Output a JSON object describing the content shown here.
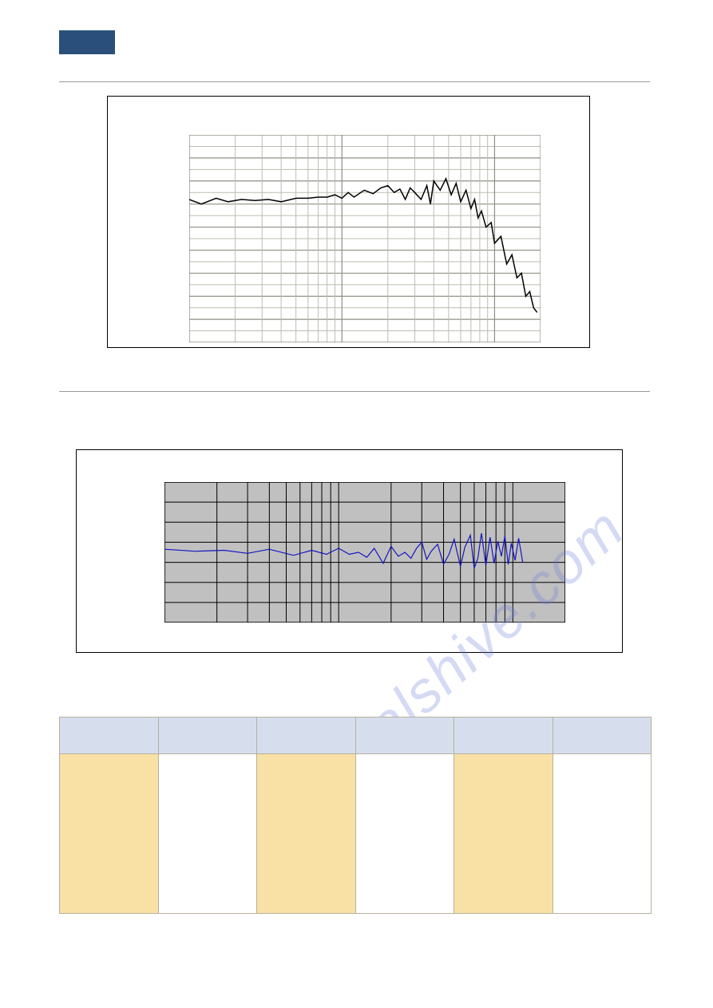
{
  "badge": {
    "bg": "#2a4f7a"
  },
  "watermark": {
    "text": "manualshive.com",
    "color": "#6b7cd8",
    "opacity": 0.28
  },
  "chart1": {
    "type": "line",
    "line_color": "#000000",
    "line_width": 1.5,
    "background_color": "#ffffff",
    "grid_color": "#bdbdb0",
    "grid_major_color": "#8f8f85",
    "x_scale": "log",
    "x_decades": [
      1,
      10,
      100,
      1000
    ],
    "ylim": [
      20,
      110
    ],
    "ytick_step": 10,
    "series": [
      {
        "f": 100,
        "db": 82
      },
      {
        "f": 120,
        "db": 80
      },
      {
        "f": 150,
        "db": 82.5
      },
      {
        "f": 180,
        "db": 81
      },
      {
        "f": 220,
        "db": 82
      },
      {
        "f": 270,
        "db": 81.5
      },
      {
        "f": 330,
        "db": 82
      },
      {
        "f": 400,
        "db": 81
      },
      {
        "f": 500,
        "db": 82.5
      },
      {
        "f": 600,
        "db": 82.5
      },
      {
        "f": 700,
        "db": 83
      },
      {
        "f": 800,
        "db": 83
      },
      {
        "f": 900,
        "db": 84
      },
      {
        "f": 1000,
        "db": 82.5
      },
      {
        "f": 1100,
        "db": 85
      },
      {
        "f": 1200,
        "db": 83
      },
      {
        "f": 1400,
        "db": 86
      },
      {
        "f": 1600,
        "db": 84.5
      },
      {
        "f": 1800,
        "db": 87
      },
      {
        "f": 2000,
        "db": 88
      },
      {
        "f": 2200,
        "db": 85
      },
      {
        "f": 2400,
        "db": 86.5
      },
      {
        "f": 2600,
        "db": 82
      },
      {
        "f": 2800,
        "db": 87
      },
      {
        "f": 3000,
        "db": 85
      },
      {
        "f": 3300,
        "db": 82
      },
      {
        "f": 3600,
        "db": 88
      },
      {
        "f": 3800,
        "db": 80
      },
      {
        "f": 4000,
        "db": 90
      },
      {
        "f": 4400,
        "db": 86
      },
      {
        "f": 4800,
        "db": 91
      },
      {
        "f": 5200,
        "db": 84
      },
      {
        "f": 5600,
        "db": 89
      },
      {
        "f": 6000,
        "db": 81
      },
      {
        "f": 6500,
        "db": 86
      },
      {
        "f": 7000,
        "db": 78
      },
      {
        "f": 7400,
        "db": 82
      },
      {
        "f": 7800,
        "db": 74
      },
      {
        "f": 8200,
        "db": 77
      },
      {
        "f": 8800,
        "db": 70
      },
      {
        "f": 9500,
        "db": 72
      },
      {
        "f": 10000,
        "db": 63
      },
      {
        "f": 11000,
        "db": 66
      },
      {
        "f": 12000,
        "db": 54
      },
      {
        "f": 13000,
        "db": 58
      },
      {
        "f": 14000,
        "db": 48
      },
      {
        "f": 15000,
        "db": 50
      },
      {
        "f": 16000,
        "db": 40
      },
      {
        "f": 17000,
        "db": 42
      },
      {
        "f": 18000,
        "db": 35
      },
      {
        "f": 19000,
        "db": 33
      }
    ]
  },
  "chart2": {
    "type": "line",
    "line_color": "#1515c0",
    "line_width": 1.2,
    "background_color": "#c0c0c0",
    "grid_color": "#000000",
    "x_scale": "log",
    "x_decades": [
      1,
      10,
      100,
      1000
    ],
    "ylim": [
      0,
      14
    ],
    "ymid": 7,
    "ytick_step": 2,
    "series": [
      {
        "f": 100,
        "y": 7.3
      },
      {
        "f": 150,
        "y": 7.1
      },
      {
        "f": 220,
        "y": 7.2
      },
      {
        "f": 300,
        "y": 6.9
      },
      {
        "f": 400,
        "y": 7.3
      },
      {
        "f": 550,
        "y": 6.7
      },
      {
        "f": 700,
        "y": 7.2
      },
      {
        "f": 850,
        "y": 6.8
      },
      {
        "f": 1000,
        "y": 7.4
      },
      {
        "f": 1150,
        "y": 6.8
      },
      {
        "f": 1300,
        "y": 7.0
      },
      {
        "f": 1450,
        "y": 6.5
      },
      {
        "f": 1600,
        "y": 7.4
      },
      {
        "f": 1800,
        "y": 5.9
      },
      {
        "f": 2000,
        "y": 7.6
      },
      {
        "f": 2200,
        "y": 6.6
      },
      {
        "f": 2400,
        "y": 7.0
      },
      {
        "f": 2600,
        "y": 6.4
      },
      {
        "f": 2800,
        "y": 7.4
      },
      {
        "f": 3000,
        "y": 8.0
      },
      {
        "f": 3200,
        "y": 6.3
      },
      {
        "f": 3400,
        "y": 7.1
      },
      {
        "f": 3700,
        "y": 7.8
      },
      {
        "f": 4000,
        "y": 5.8
      },
      {
        "f": 4300,
        "y": 6.8
      },
      {
        "f": 4600,
        "y": 8.3
      },
      {
        "f": 5000,
        "y": 5.6
      },
      {
        "f": 5300,
        "y": 7.5
      },
      {
        "f": 5700,
        "y": 8.7
      },
      {
        "f": 6000,
        "y": 5.4
      },
      {
        "f": 6300,
        "y": 6.4
      },
      {
        "f": 6600,
        "y": 8.9
      },
      {
        "f": 7000,
        "y": 5.7
      },
      {
        "f": 7400,
        "y": 8.5
      },
      {
        "f": 7800,
        "y": 5.9
      },
      {
        "f": 8200,
        "y": 8.1
      },
      {
        "f": 8600,
        "y": 6.6
      },
      {
        "f": 9000,
        "y": 8.6
      },
      {
        "f": 9400,
        "y": 5.8
      },
      {
        "f": 9800,
        "y": 7.9
      },
      {
        "f": 10300,
        "y": 6.2
      },
      {
        "f": 10800,
        "y": 8.4
      },
      {
        "f": 11400,
        "y": 6.0
      }
    ]
  },
  "table": {
    "header_bg": "#d6deee",
    "accent_bg": "#f9e0a5",
    "border_color": "#b7b099",
    "columns": 6,
    "header_cells": [
      "",
      "",
      "",
      "",
      "",
      ""
    ],
    "rows": [
      [
        "",
        "",
        "",
        "",
        "",
        ""
      ]
    ]
  }
}
